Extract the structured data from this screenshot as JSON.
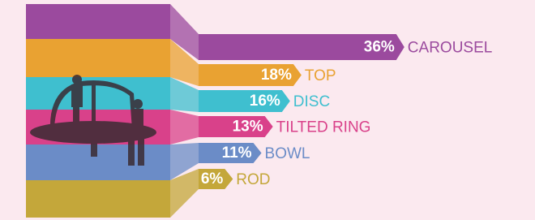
{
  "chart_data": {
    "type": "bar",
    "orientation": "horizontal",
    "categories": [
      "CAROUSEL",
      "TOP",
      "DISC",
      "TILTED RING",
      "BOWL",
      "ROD"
    ],
    "values": [
      36,
      18,
      16,
      13,
      11,
      6
    ],
    "value_labels": [
      "36%",
      "18%",
      "16%",
      "13%",
      "11%",
      "6%"
    ],
    "colors": [
      "#9b4a9e",
      "#e9a232",
      "#3fbfcf",
      "#d9418a",
      "#6b8cc7",
      "#c4a73a"
    ]
  }
}
